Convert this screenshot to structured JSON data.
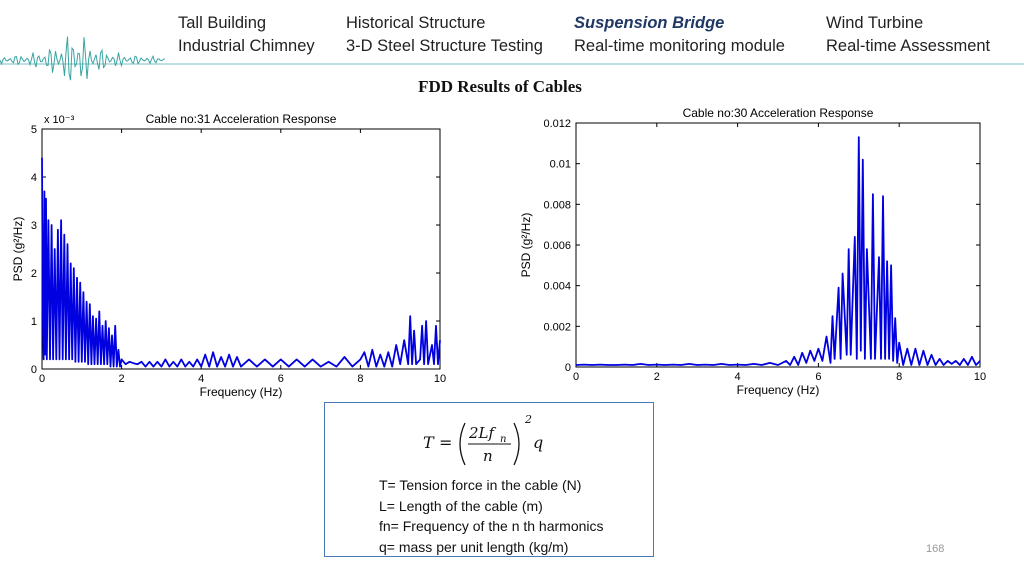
{
  "nav": {
    "items": [
      {
        "label": "Tall Building",
        "active": false
      },
      {
        "label": "Historical Structure",
        "active": false
      },
      {
        "label": "Suspension Bridge",
        "active": true
      },
      {
        "label": "Wind Turbine",
        "active": false
      },
      {
        "label": "Industrial Chimney",
        "active": false
      },
      {
        "label": "3-D Steel Structure Testing",
        "active": false
      },
      {
        "label": "Real-time monitoring module",
        "active": false
      },
      {
        "label": "Real-time Assessment",
        "active": false
      }
    ]
  },
  "slide_title": "FDD Results of Cables",
  "chart_data": [
    {
      "type": "line",
      "title": "Cable no:31 Acceleration Response",
      "xlabel": "Frequency (Hz)",
      "ylabel": "PSD (g²/Hz)",
      "y_multiplier_label": "x 10⁻³",
      "xlim": [
        0,
        10
      ],
      "ylim": [
        0,
        5
      ],
      "xticks": [
        "0",
        "2",
        "4",
        "6",
        "8",
        "10"
      ],
      "yticks": [
        "0",
        "1",
        "2",
        "3",
        "4",
        "5"
      ],
      "series_color": "#0000e0",
      "series": [
        {
          "x": [
            0,
            0.02,
            0.04,
            0.06,
            0.08,
            0.1,
            0.12,
            0.16,
            0.2,
            0.24,
            0.28,
            0.32,
            0.36,
            0.4,
            0.44,
            0.48,
            0.52,
            0.56,
            0.6,
            0.64,
            0.68,
            0.72,
            0.76,
            0.8,
            0.84,
            0.88,
            0.92,
            0.96,
            1,
            1.04,
            1.08,
            1.12,
            1.16,
            1.2,
            1.24,
            1.28,
            1.32,
            1.36,
            1.4,
            1.44,
            1.48,
            1.52,
            1.56,
            1.6,
            1.64,
            1.68,
            1.72,
            1.76,
            1.8,
            1.84,
            1.88,
            1.92,
            1.96,
            2,
            2.1,
            2.2,
            2.3,
            2.4,
            2.5,
            2.6,
            2.7,
            2.8,
            2.9,
            3,
            3.1,
            3.2,
            3.3,
            3.4,
            3.5,
            3.6,
            3.7,
            3.8,
            3.9,
            4,
            4.1,
            4.2,
            4.3,
            4.4,
            4.5,
            4.6,
            4.7,
            4.8,
            4.9,
            5,
            5.2,
            5.4,
            5.6,
            5.8,
            6,
            6.2,
            6.4,
            6.6,
            6.8,
            7,
            7.2,
            7.4,
            7.6,
            7.8,
            8,
            8.1,
            8.2,
            8.3,
            8.4,
            8.5,
            8.6,
            8.7,
            8.8,
            8.9,
            9,
            9.1,
            9.2,
            9.25,
            9.3,
            9.35,
            9.4,
            9.5,
            9.55,
            9.6,
            9.65,
            9.7,
            9.8,
            9.85,
            9.9,
            9.95,
            10
          ],
          "y": [
            4.4,
            1.2,
            0.2,
            3.7,
            0.3,
            3.55,
            0.2,
            3.1,
            0.2,
            3.0,
            0.2,
            2.5,
            0.2,
            2.9,
            0.2,
            3.1,
            0.2,
            2.8,
            0.2,
            2.6,
            0.2,
            2.2,
            0.2,
            2.1,
            0.15,
            1.9,
            0.15,
            1.8,
            0.15,
            1.6,
            0.15,
            1.4,
            0.1,
            1.35,
            0.1,
            1.1,
            0.1,
            1.05,
            0.1,
            1.2,
            0.1,
            0.9,
            0.1,
            1.0,
            0.1,
            0.85,
            0.05,
            0.7,
            0.05,
            0.9,
            0.05,
            0.4,
            0.05,
            0.2,
            0.1,
            0.15,
            0.12,
            0.1,
            0.15,
            0.05,
            0.15,
            0.05,
            0.15,
            0.05,
            0.2,
            0.05,
            0.15,
            0.05,
            0.2,
            0.05,
            0.15,
            0.05,
            0.2,
            0.05,
            0.3,
            0.05,
            0.35,
            0.05,
            0.25,
            0.05,
            0.3,
            0.05,
            0.25,
            0.05,
            0.2,
            0.05,
            0.2,
            0.05,
            0.2,
            0.05,
            0.2,
            0.05,
            0.2,
            0.05,
            0.15,
            0.05,
            0.25,
            0.05,
            0.2,
            0.35,
            0.05,
            0.4,
            0.05,
            0.3,
            0.05,
            0.35,
            0.05,
            0.5,
            0.1,
            0.6,
            0.1,
            1.1,
            0.1,
            0.8,
            0.1,
            0.2,
            0.9,
            0.1,
            1.0,
            0.1,
            0.5,
            0.1,
            0.9,
            0.1,
            0.6
          ]
        }
      ]
    },
    {
      "type": "line",
      "title": "Cable no:30 Acceleration Response",
      "xlabel": "Frequency (Hz)",
      "ylabel": "PSD (g²/Hz)",
      "xlim": [
        0,
        10
      ],
      "ylim": [
        0,
        0.012
      ],
      "xticks": [
        "0",
        "2",
        "4",
        "6",
        "8",
        "10"
      ],
      "yticks": [
        "0",
        "0.002",
        "0.004",
        "0.006",
        "0.008",
        "0.01",
        "0.012"
      ],
      "series_color": "#0000e0",
      "series": [
        {
          "x": [
            0,
            0.2,
            0.4,
            0.6,
            0.8,
            1,
            1.2,
            1.4,
            1.6,
            1.8,
            2,
            2.2,
            2.4,
            2.6,
            2.8,
            3,
            3.2,
            3.4,
            3.6,
            3.8,
            4,
            4.2,
            4.4,
            4.6,
            4.8,
            5,
            5.2,
            5.3,
            5.4,
            5.5,
            5.6,
            5.7,
            5.8,
            5.9,
            6,
            6.1,
            6.2,
            6.3,
            6.35,
            6.4,
            6.5,
            6.55,
            6.6,
            6.7,
            6.75,
            6.8,
            6.9,
            6.95,
            7,
            7.05,
            7.1,
            7.15,
            7.2,
            7.3,
            7.35,
            7.4,
            7.5,
            7.55,
            7.6,
            7.65,
            7.7,
            7.75,
            7.8,
            7.85,
            7.9,
            7.95,
            8,
            8.1,
            8.2,
            8.3,
            8.4,
            8.5,
            8.6,
            8.7,
            8.8,
            8.9,
            9,
            9.1,
            9.2,
            9.3,
            9.4,
            9.5,
            9.6,
            9.7,
            9.8,
            9.9,
            10
          ],
          "y": [
            0.0001,
            0.00012,
            0.0001,
            0.00012,
            0.0001,
            0.0001,
            0.00012,
            0.0001,
            0.00015,
            0.0001,
            0.00012,
            0.0001,
            0.00012,
            0.0001,
            0.00015,
            0.0001,
            0.00012,
            0.0001,
            0.00015,
            0.0001,
            0.00012,
            0.0001,
            0.00015,
            0.0001,
            0.0002,
            0.0001,
            0.0003,
            0.0001,
            0.0005,
            0.0001,
            0.0007,
            0.0002,
            0.0008,
            0.0003,
            0.0009,
            0.0003,
            0.0015,
            0.0002,
            0.0025,
            0.0004,
            0.0039,
            0.0004,
            0.0046,
            0.0006,
            0.0058,
            0.0006,
            0.0064,
            0.0004,
            0.0113,
            0.0008,
            0.0102,
            0.0004,
            0.0058,
            0.0004,
            0.0085,
            0.0004,
            0.0054,
            0.0004,
            0.0084,
            0.0004,
            0.0052,
            0.0004,
            0.005,
            0.0003,
            0.0024,
            0.0002,
            0.0012,
            0.0001,
            0.0009,
            0.0001,
            0.0009,
            0.0001,
            0.0008,
            0.0001,
            0.0006,
            0.0001,
            0.0004,
            0.0001,
            0.0003,
            0.00015,
            0.0003,
            0.0001,
            0.0004,
            0.0001,
            0.0005,
            0.0001,
            0.0003
          ]
        }
      ]
    }
  ],
  "formula_box": {
    "equation": "T = (2Lfₙ / n)² q",
    "defs": [
      "T= Tension force in the cable (N)",
      "L= Length of the cable (m)",
      "fn= Frequency of the n th harmonics",
      "q= mass per unit length (kg/m)"
    ]
  },
  "page_number": "168",
  "colors": {
    "nav_active": "#1f3864",
    "box_border": "#4a7ab5",
    "trace": "#0000e0",
    "wave": "#3aa3a3"
  }
}
